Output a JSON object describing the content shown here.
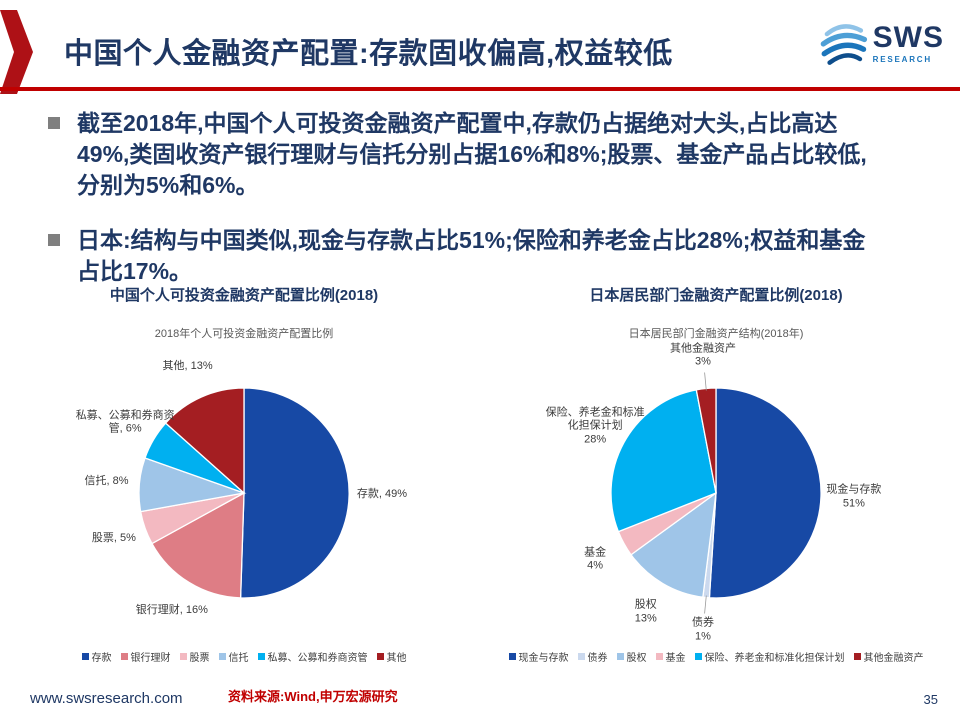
{
  "header": {
    "title": "中国个人金融资产配置:存款固收偏高,权益较低",
    "logo_text": "SWS",
    "logo_subtext": "RESEARCH"
  },
  "bullets": [
    "截至2018年,中国个人可投资金融资产配置中,存款仍占据绝对大头,占比高达49%,类固收资产银行理财与信托分别占据16%和8%;股票、基金产品占比较低,分别为5%和6%。",
    "日本:结构与中国类似,现金与存款占比51%;保险和养老金占比28%;权益和基金占比17%。"
  ],
  "chart_data": [
    {
      "type": "pie",
      "title": "中国个人可投资金融资产配置比例(2018)",
      "inner_title": "2018年个人可投资金融资产配置比例",
      "labels": [
        "存款",
        "银行理财",
        "股票",
        "信托",
        "私募、公募和券商资管",
        "其他"
      ],
      "values": [
        49,
        16,
        5,
        8,
        6,
        13
      ],
      "colors": [
        "#1749A5",
        "#DE7D85",
        "#F3B9C1",
        "#9FC5E8",
        "#00B0F0",
        "#A41E22"
      ],
      "label_sep": ", ",
      "legend_position": "bottom"
    },
    {
      "type": "pie",
      "title": "日本居民部门金融资产配置比例(2018)",
      "inner_title": "日本居民部门金融资产结构(2018年)",
      "labels": [
        "现金与存款",
        "债券",
        "股权",
        "基金",
        "保险、养老金和标准化担保计划",
        "其他金融资产"
      ],
      "values": [
        51,
        1,
        13,
        4,
        28,
        3
      ],
      "colors": [
        "#1749A5",
        "#CBD9EE",
        "#9FC5E8",
        "#F3B9C1",
        "#00B0F0",
        "#A41E22"
      ],
      "label_sep": "\n",
      "legend_position": "bottom"
    }
  ],
  "footer": {
    "website": "www.swsresearch.com",
    "source": "资料来源:Wind,申万宏源研究",
    "page": "35"
  },
  "colors": {
    "accent_red": "#C00000",
    "title_navy": "#1F3864",
    "bullet_gray": "#7F7F7F"
  }
}
